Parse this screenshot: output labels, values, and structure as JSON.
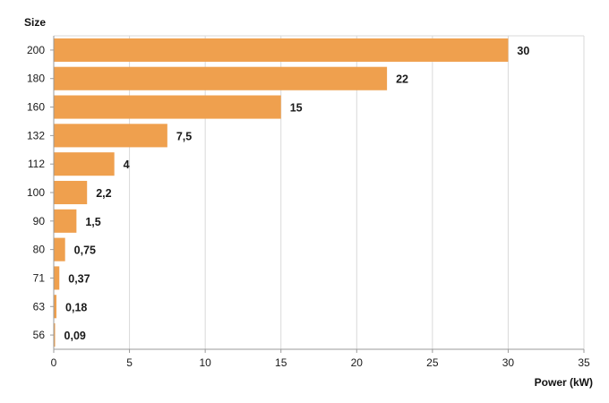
{
  "chart_data": {
    "type": "bar",
    "orientation": "horizontal",
    "ylabel": "Size",
    "xlabel": "Power (kW)",
    "categories": [
      "200",
      "180",
      "160",
      "132",
      "112",
      "100",
      "90",
      "80",
      "71",
      "63",
      "56"
    ],
    "values": [
      30,
      22,
      15,
      7.5,
      4,
      2.2,
      1.5,
      0.75,
      0.37,
      0.18,
      0.09
    ],
    "data_labels": [
      "30",
      "22",
      "15",
      "7,5",
      "4",
      "2,2",
      "1,5",
      "0,75",
      "0,37",
      "0,18",
      "0,09"
    ],
    "xlim": [
      0,
      35
    ],
    "x_ticks": [
      "0",
      "5",
      "10",
      "15",
      "20",
      "25",
      "30",
      "35"
    ],
    "grid": "vertical",
    "legend": "none",
    "colors": {
      "bar": "#EFA04E",
      "grid": "#d9d9d9",
      "axis": "#9a9a9a",
      "text": "#1a1a1a"
    }
  }
}
